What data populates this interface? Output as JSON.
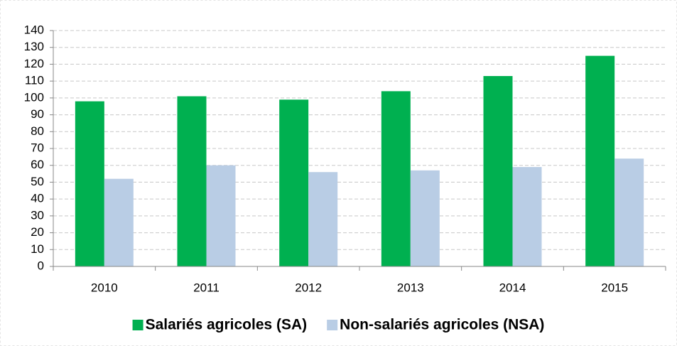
{
  "chart_data": {
    "type": "bar",
    "categories": [
      "2010",
      "2011",
      "2012",
      "2013",
      "2014",
      "2015"
    ],
    "series": [
      {
        "name": "Salariés agricoles (SA)",
        "color": "#00b050",
        "values": [
          98,
          101,
          99,
          104,
          113,
          125
        ]
      },
      {
        "name": "Non-salariés agricoles (NSA)",
        "color": "#b9cde5",
        "values": [
          52,
          60,
          56,
          57,
          59,
          64
        ]
      }
    ],
    "ylim": [
      0,
      140
    ],
    "yticks": [
      0,
      10,
      20,
      30,
      40,
      50,
      60,
      70,
      80,
      90,
      100,
      110,
      120,
      130,
      140
    ],
    "grid": true,
    "legend": "bottom"
  }
}
